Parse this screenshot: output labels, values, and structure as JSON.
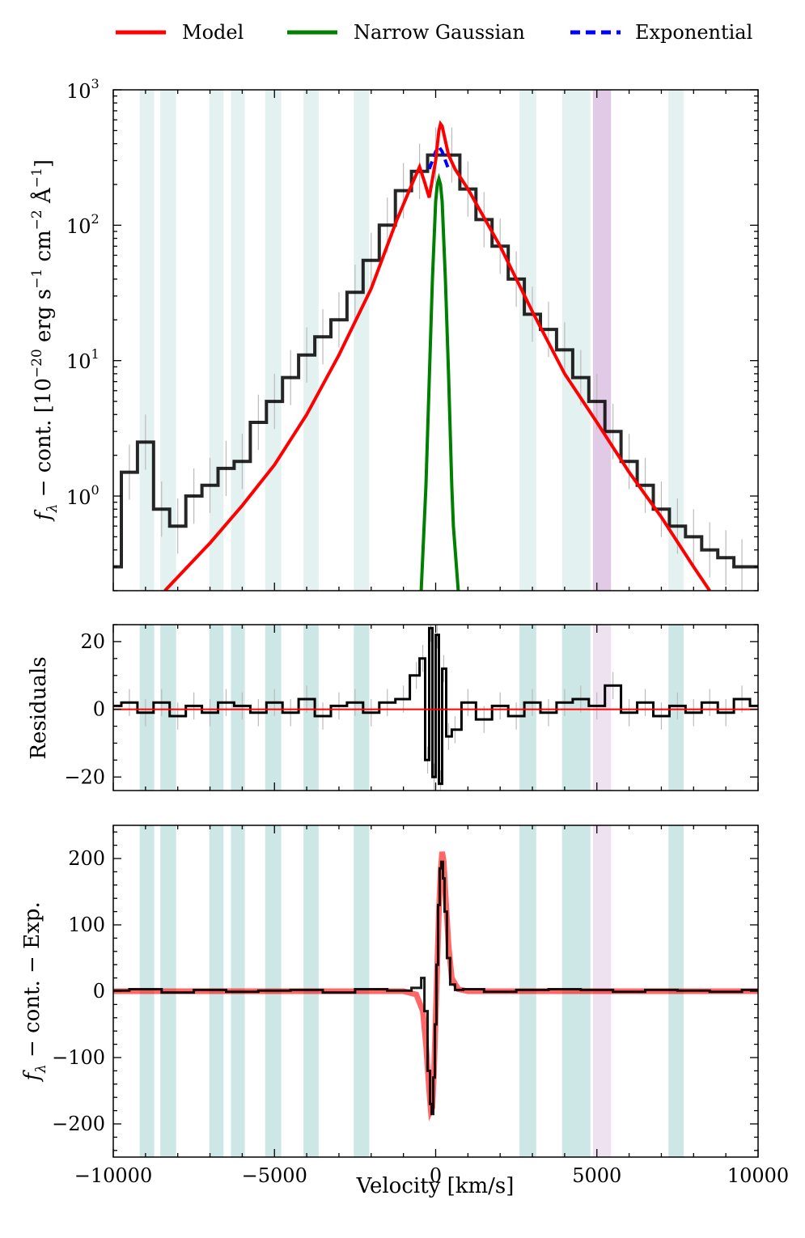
{
  "legend": [
    {
      "label": "Model",
      "color": "#ff0000",
      "style": "solid"
    },
    {
      "label": "Narrow Gaussian",
      "color": "#008000",
      "style": "solid"
    },
    {
      "label": "Exponential",
      "color": "#0000ff",
      "style": "dashed"
    }
  ],
  "colors": {
    "band_teal": "#b2d8d8",
    "band_purple": "#c89fcf",
    "model": "#ff0000",
    "gaussian": "#008000",
    "exponential": "#0000ff",
    "data": "#000000",
    "errors": "#bbbbbb"
  },
  "chart_data": [
    {
      "type": "line",
      "panel": "top",
      "ylabel": "f_λ − cont. [10^−20 erg s^−1 cm^−2 Å^−1]",
      "ylabel_parts": {
        "prefix": "f",
        "sub": "λ",
        "mid": " − cont.  [10",
        "exp1": "−20",
        "unit1": " erg s",
        "exp2": "−1",
        "unit2": " cm",
        "exp3": "−2",
        "unit3": " Å",
        "exp4": "−1",
        "suffix": "]"
      },
      "yscale": "log",
      "ylim": [
        0.2,
        1000
      ],
      "xlim": [
        -10000,
        10000
      ],
      "ytick_labels": [
        {
          "base": "10",
          "exp": "3",
          "value": 1000
        },
        {
          "base": "10",
          "exp": "2",
          "value": 100
        },
        {
          "base": "10",
          "exp": "1",
          "value": 10
        },
        {
          "base": "10",
          "exp": "0",
          "value": 1
        }
      ],
      "series": [
        {
          "name": "Model",
          "x": [
            -8400,
            -7000,
            -6000,
            -5000,
            -4000,
            -3000,
            -2000,
            -1200,
            -700,
            -500,
            -350,
            -200,
            0,
            100,
            150,
            200,
            300,
            400,
            600,
            1000,
            2000,
            3000,
            4000,
            5000,
            6000,
            7000,
            8000,
            8500
          ],
          "y": [
            0.2,
            0.45,
            0.85,
            1.7,
            4.0,
            11,
            34,
            110,
            210,
            270,
            210,
            160,
            300,
            500,
            560,
            540,
            420,
            330,
            260,
            185,
            70,
            23,
            8,
            3.5,
            1.5,
            0.7,
            0.3,
            0.2
          ]
        },
        {
          "name": "Narrow Gaussian",
          "x": [
            -450,
            -300,
            -200,
            -100,
            0,
            50,
            100,
            150,
            200,
            300,
            400,
            500,
            550,
            700
          ],
          "y": [
            0.2,
            1.2,
            7,
            40,
            150,
            200,
            220,
            200,
            150,
            40,
            8,
            1.2,
            0.6,
            0.2
          ]
        },
        {
          "name": "Exponential",
          "x": [
            -200,
            -100,
            0,
            100,
            200,
            300,
            400
          ],
          "y": [
            260,
            300,
            350,
            380,
            350,
            300,
            260
          ]
        },
        {
          "name": "Data",
          "x": [
            -10000,
            -9500,
            -9000,
            -8500,
            -8000,
            -7500,
            -7000,
            -6500,
            -6000,
            -5500,
            -5000,
            -4500,
            -4000,
            -3500,
            -3000,
            -2500,
            -2000,
            -1500,
            -1000,
            -500,
            0,
            500,
            1000,
            1500,
            2000,
            2500,
            3000,
            3500,
            4000,
            4500,
            5000,
            5500,
            6000,
            6500,
            7000,
            7500,
            8000,
            8500,
            9000,
            9500,
            10000
          ],
          "y": [
            0.3,
            1.5,
            2.5,
            0.8,
            0.6,
            1.0,
            1.2,
            1.6,
            1.8,
            3.5,
            5.0,
            7.5,
            11,
            15,
            20,
            32,
            55,
            100,
            180,
            250,
            330,
            330,
            185,
            110,
            70,
            40,
            22,
            17,
            12,
            7.5,
            5.0,
            3.0,
            1.8,
            1.2,
            0.8,
            0.6,
            0.5,
            0.4,
            0.35,
            0.3,
            0.3
          ]
        }
      ]
    },
    {
      "type": "line",
      "panel": "middle",
      "ylabel": "Residuals",
      "ylim": [
        -24,
        25
      ],
      "xlim": [
        -10000,
        10000
      ],
      "ytick_labels": [
        "20",
        "0",
        "−20"
      ],
      "ytick_values": [
        20,
        0,
        -20
      ],
      "series": [
        {
          "name": "Residuals",
          "x": [
            -10000,
            -9500,
            -9000,
            -8500,
            -8000,
            -7500,
            -7000,
            -6500,
            -6000,
            -5500,
            -5000,
            -4500,
            -4000,
            -3500,
            -3000,
            -2500,
            -2000,
            -1500,
            -1000,
            -600,
            -400,
            -250,
            -150,
            -50,
            50,
            150,
            250,
            400,
            600,
            1000,
            1500,
            2000,
            2500,
            3000,
            3500,
            4000,
            4500,
            5000,
            5500,
            6000,
            6500,
            7000,
            7500,
            8000,
            8500,
            9000,
            9500,
            10000
          ],
          "y": [
            1,
            2,
            -1,
            2,
            -2,
            1,
            -1,
            2,
            1,
            -1,
            2,
            -1,
            3,
            -2,
            1,
            2,
            -1,
            2,
            3,
            10,
            15,
            -15,
            24,
            -20,
            22,
            -22,
            12,
            -8,
            -6,
            2,
            -3,
            1,
            -2,
            2,
            -1,
            2,
            3,
            1,
            7,
            -1,
            2,
            -2,
            1,
            -1,
            2,
            -1,
            3,
            1
          ]
        },
        {
          "name": "Zero",
          "x": [
            -10000,
            10000
          ],
          "y": [
            0,
            0
          ]
        }
      ]
    },
    {
      "type": "line",
      "panel": "bottom",
      "ylabel": "f_λ − cont. − Exp.",
      "ylabel_parts": {
        "prefix": "f",
        "sub": "λ",
        "rest": " − cont. − Exp."
      },
      "xlabel": "Velocity [km/s]",
      "ylim": [
        -250,
        250
      ],
      "xlim": [
        -10000,
        10000
      ],
      "ytick_labels": [
        "200",
        "100",
        "0",
        "−100",
        "−200"
      ],
      "ytick_values": [
        200,
        100,
        0,
        -100,
        -200
      ],
      "xtick_labels": [
        "−10000",
        "−5000",
        "0",
        "5000",
        "10000"
      ],
      "xtick_values": [
        -10000,
        -5000,
        0,
        5000,
        10000
      ],
      "series": [
        {
          "name": "Model",
          "x": [
            -10000,
            -1000,
            -600,
            -400,
            -300,
            -200,
            -150,
            -100,
            -50,
            0,
            50,
            100,
            150,
            200,
            250,
            300,
            400,
            500,
            700,
            1000,
            10000
          ],
          "y": [
            0,
            0,
            -5,
            -30,
            -80,
            -150,
            -180,
            -175,
            -120,
            -40,
            40,
            120,
            180,
            210,
            195,
            150,
            70,
            20,
            3,
            0,
            0
          ]
        },
        {
          "name": "Data",
          "x": [
            -10000,
            -9000,
            -8000,
            -7000,
            -6000,
            -5000,
            -4000,
            -3000,
            -2000,
            -1000,
            -500,
            -400,
            -300,
            -200,
            -150,
            -100,
            -50,
            0,
            50,
            100,
            150,
            200,
            250,
            300,
            400,
            500,
            700,
            1000,
            2000,
            3000,
            4000,
            5000,
            6000,
            7000,
            8000,
            9000,
            10000
          ],
          "y": [
            1,
            3,
            -2,
            2,
            -1,
            1,
            2,
            -2,
            3,
            1,
            5,
            20,
            -30,
            -120,
            -170,
            -185,
            -130,
            -50,
            40,
            130,
            185,
            195,
            170,
            120,
            50,
            10,
            2,
            3,
            -1,
            2,
            3,
            2,
            -1,
            2,
            1,
            -1,
            2
          ]
        }
      ]
    }
  ],
  "bands": {
    "teal": [
      [
        -9180,
        -8730
      ],
      [
        -8540,
        -8050
      ],
      [
        -7020,
        -6580
      ],
      [
        -6350,
        -5920
      ],
      [
        -5290,
        -4790
      ],
      [
        -4100,
        -3630
      ],
      [
        -2540,
        -2060
      ],
      [
        2600,
        3120
      ],
      [
        3920,
        4800
      ],
      [
        7220,
        7690
      ]
    ],
    "purple": [
      [
        4880,
        5440
      ]
    ]
  }
}
